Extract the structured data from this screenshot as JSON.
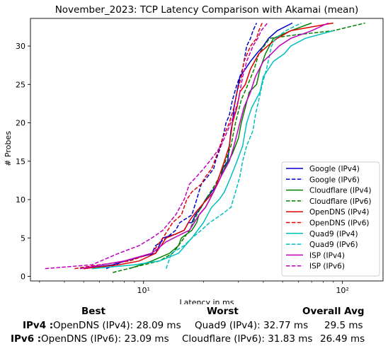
{
  "chart_data": {
    "type": "line",
    "title": "November_2023: TCP Latency Comparison with Akamai (mean)",
    "xlabel": "Latency in ms",
    "ylabel": "# Probes",
    "x_scale": "log",
    "xlim": [
      2.7,
      160
    ],
    "ylim": [
      -0.6,
      33.6
    ],
    "x_ticks": [
      {
        "value": 10,
        "label": "10¹"
      },
      {
        "value": 100,
        "label": "10²"
      }
    ],
    "y_ticks": [
      0,
      5,
      10,
      15,
      20,
      25,
      30
    ],
    "grid": false,
    "legend_position": "lower right",
    "series": [
      {
        "name": "Google (IPv4)",
        "color": "#0000cc",
        "dash": "solid",
        "points": [
          [
            5.0,
            1
          ],
          [
            7.0,
            1.5
          ],
          [
            9.5,
            2.5
          ],
          [
            11.5,
            3
          ],
          [
            12.5,
            5
          ],
          [
            14.5,
            5.5
          ],
          [
            16.0,
            6
          ],
          [
            16.8,
            7
          ],
          [
            17.5,
            7
          ],
          [
            18.2,
            8
          ],
          [
            19.5,
            9
          ],
          [
            20.5,
            10
          ],
          [
            22.0,
            11
          ],
          [
            23.5,
            12
          ],
          [
            24.5,
            13
          ],
          [
            25.0,
            14
          ],
          [
            26.5,
            15
          ],
          [
            27.0,
            17
          ],
          [
            27.5,
            19
          ],
          [
            28.0,
            20
          ],
          [
            28.5,
            22
          ],
          [
            29.5,
            24
          ],
          [
            30.5,
            26
          ],
          [
            32.5,
            27
          ],
          [
            34.5,
            28
          ],
          [
            37.0,
            29
          ],
          [
            40.0,
            30
          ],
          [
            42.5,
            31
          ],
          [
            47.0,
            32
          ],
          [
            56.0,
            33
          ]
        ]
      },
      {
        "name": "Google (IPv6)",
        "color": "#0000cc",
        "dash": "dashed",
        "points": [
          [
            6.5,
            1
          ],
          [
            8.0,
            2
          ],
          [
            11.0,
            3
          ],
          [
            11.5,
            4
          ],
          [
            13.0,
            5
          ],
          [
            14.5,
            6
          ],
          [
            15.2,
            7
          ],
          [
            17.5,
            8
          ],
          [
            18.5,
            10
          ],
          [
            19.5,
            12
          ],
          [
            21.0,
            13
          ],
          [
            22.5,
            14
          ],
          [
            23.0,
            15
          ],
          [
            24.5,
            17
          ],
          [
            26.0,
            20
          ],
          [
            27.0,
            21
          ],
          [
            28.0,
            23
          ],
          [
            29.5,
            25
          ],
          [
            31.5,
            27
          ],
          [
            33.0,
            30
          ],
          [
            34.5,
            31
          ],
          [
            35.5,
            32
          ],
          [
            37.0,
            33
          ]
        ]
      },
      {
        "name": "Cloudflare (IPv4)",
        "color": "#008000",
        "dash": "solid",
        "points": [
          [
            8.5,
            1
          ],
          [
            11.0,
            2
          ],
          [
            13.5,
            3
          ],
          [
            15.0,
            4
          ],
          [
            15.5,
            5
          ],
          [
            17.5,
            6
          ],
          [
            18.5,
            7
          ],
          [
            19.0,
            8
          ],
          [
            20.5,
            9
          ],
          [
            21.5,
            10
          ],
          [
            23.5,
            12
          ],
          [
            25.5,
            14
          ],
          [
            28.0,
            16
          ],
          [
            30.0,
            18
          ],
          [
            31.0,
            20
          ],
          [
            32.5,
            22
          ],
          [
            34.0,
            24
          ],
          [
            37.0,
            25
          ],
          [
            38.5,
            27
          ],
          [
            41.0,
            29
          ],
          [
            45.0,
            31
          ],
          [
            55.0,
            32
          ],
          [
            70.0,
            33
          ]
        ]
      },
      {
        "name": "Cloudflare (IPv6)",
        "color": "#008000",
        "dash": "dashed",
        "points": [
          [
            7.0,
            0.5
          ],
          [
            10.0,
            1.5
          ],
          [
            12.0,
            2
          ],
          [
            14.0,
            3
          ],
          [
            15.0,
            4
          ],
          [
            17.0,
            6
          ],
          [
            18.5,
            8
          ],
          [
            20.5,
            10
          ],
          [
            23.0,
            12
          ],
          [
            25.0,
            14
          ],
          [
            27.5,
            17
          ],
          [
            29.0,
            20
          ],
          [
            31.0,
            23
          ],
          [
            33.5,
            25
          ],
          [
            36.0,
            27
          ],
          [
            38.0,
            29
          ],
          [
            43.0,
            31
          ],
          [
            60.0,
            31.5
          ],
          [
            90.0,
            32
          ],
          [
            130.0,
            33
          ]
        ]
      },
      {
        "name": "OpenDNS (IPv4)",
        "color": "#e00000",
        "dash": "solid",
        "points": [
          [
            5.0,
            1
          ],
          [
            7.5,
            1.5
          ],
          [
            9.5,
            2
          ],
          [
            11.5,
            3
          ],
          [
            13.0,
            5
          ],
          [
            14.5,
            5.5
          ],
          [
            16.0,
            6
          ],
          [
            16.8,
            7
          ],
          [
            17.3,
            7.5
          ],
          [
            18.5,
            8.5
          ],
          [
            20.0,
            9.5
          ],
          [
            22.5,
            11
          ],
          [
            24.0,
            13
          ],
          [
            25.5,
            15
          ],
          [
            27.0,
            17
          ],
          [
            28.0,
            20
          ],
          [
            29.5,
            22
          ],
          [
            30.5,
            24
          ],
          [
            32.5,
            25
          ],
          [
            34.5,
            27
          ],
          [
            38.0,
            29
          ],
          [
            42.0,
            30
          ],
          [
            47.0,
            31
          ],
          [
            55.0,
            32
          ],
          [
            90.0,
            33
          ]
        ]
      },
      {
        "name": "OpenDNS (IPv6)",
        "color": "#e00000",
        "dash": "dashed",
        "points": [
          [
            4.5,
            1
          ],
          [
            6.0,
            1.5
          ],
          [
            8.5,
            2
          ],
          [
            11.0,
            3
          ],
          [
            12.5,
            5
          ],
          [
            14.0,
            7
          ],
          [
            15.5,
            8
          ],
          [
            16.5,
            10
          ],
          [
            17.5,
            11
          ],
          [
            19.5,
            12
          ],
          [
            20.5,
            13
          ],
          [
            22.0,
            14
          ],
          [
            23.5,
            16
          ],
          [
            25.0,
            18
          ],
          [
            27.0,
            20
          ],
          [
            28.5,
            22
          ],
          [
            29.5,
            24
          ],
          [
            31.0,
            26
          ],
          [
            32.0,
            28
          ],
          [
            34.5,
            30
          ],
          [
            37.0,
            31
          ],
          [
            38.0,
            32
          ],
          [
            39.5,
            33
          ]
        ]
      },
      {
        "name": "Quad9 (IPv4)",
        "color": "#00bfbf",
        "dash": "solid",
        "points": [
          [
            5.5,
            1
          ],
          [
            9.0,
            1.5
          ],
          [
            12.0,
            2
          ],
          [
            15.0,
            3
          ],
          [
            17.5,
            5
          ],
          [
            20.0,
            7
          ],
          [
            22.0,
            9
          ],
          [
            24.0,
            10
          ],
          [
            25.5,
            11
          ],
          [
            27.5,
            13
          ],
          [
            29.5,
            15
          ],
          [
            31.5,
            17
          ],
          [
            33.0,
            20
          ],
          [
            35.0,
            22
          ],
          [
            38.5,
            24
          ],
          [
            40.0,
            26
          ],
          [
            45.0,
            28
          ],
          [
            51.0,
            29
          ],
          [
            55.0,
            30
          ],
          [
            65.0,
            31
          ],
          [
            90.0,
            32
          ]
        ]
      },
      {
        "name": "Quad9 (IPv6)",
        "color": "#00bfbf",
        "dash": "dashed",
        "points": [
          [
            13.0,
            1
          ],
          [
            13.8,
            3
          ],
          [
            16.0,
            4
          ],
          [
            17.5,
            5
          ],
          [
            19.5,
            6
          ],
          [
            21.5,
            7
          ],
          [
            24.5,
            8
          ],
          [
            27.5,
            9
          ],
          [
            29.0,
            11
          ],
          [
            30.5,
            13
          ],
          [
            31.5,
            15
          ],
          [
            33.0,
            17
          ],
          [
            35.5,
            19
          ],
          [
            36.5,
            21
          ],
          [
            38.0,
            23
          ],
          [
            39.5,
            25
          ],
          [
            41.5,
            27
          ],
          [
            44.0,
            30
          ],
          [
            46.0,
            31
          ],
          [
            52.0,
            32
          ],
          [
            62.0,
            33
          ]
        ]
      },
      {
        "name": "ISP (IPv4)",
        "color": "#c000c0",
        "dash": "solid",
        "points": [
          [
            4.8,
            1
          ],
          [
            8.0,
            2
          ],
          [
            11.0,
            3
          ],
          [
            13.0,
            4.5
          ],
          [
            15.5,
            5.5
          ],
          [
            17.0,
            6
          ],
          [
            18.0,
            7
          ],
          [
            19.0,
            8
          ],
          [
            20.5,
            9
          ],
          [
            22.5,
            11
          ],
          [
            24.5,
            13
          ],
          [
            27.0,
            15
          ],
          [
            28.5,
            17
          ],
          [
            30.5,
            20
          ],
          [
            32.0,
            22
          ],
          [
            34.5,
            24
          ],
          [
            36.5,
            26
          ],
          [
            40.0,
            28
          ],
          [
            44.0,
            29
          ],
          [
            48.0,
            30
          ],
          [
            55.0,
            31
          ],
          [
            70.0,
            32
          ],
          [
            85.0,
            33
          ]
        ]
      },
      {
        "name": "ISP (IPv6)",
        "color": "#c000c0",
        "dash": "dashed",
        "points": [
          [
            3.2,
            1
          ],
          [
            5.5,
            1.5
          ],
          [
            7.5,
            3
          ],
          [
            9.5,
            4
          ],
          [
            11.0,
            5
          ],
          [
            12.5,
            6
          ],
          [
            14.5,
            8
          ],
          [
            16.0,
            10
          ],
          [
            17.0,
            12
          ],
          [
            18.5,
            13
          ],
          [
            20.0,
            14
          ],
          [
            21.5,
            15
          ],
          [
            23.0,
            16
          ],
          [
            24.5,
            17
          ],
          [
            26.5,
            19
          ],
          [
            28.5,
            21
          ],
          [
            30.0,
            23
          ],
          [
            31.5,
            26
          ],
          [
            33.0,
            28
          ],
          [
            35.5,
            30
          ],
          [
            37.5,
            31
          ],
          [
            39.0,
            32
          ],
          [
            42.0,
            33
          ]
        ]
      }
    ]
  },
  "stats": {
    "headers": {
      "best": "Best",
      "worst": "Worst",
      "avg": "Overall Avg"
    },
    "rows": [
      {
        "label": "IPv4 :",
        "best": "OpenDNS (IPv4): 28.09 ms",
        "worst": "Quad9 (IPv4): 32.77 ms",
        "avg": "29.5 ms"
      },
      {
        "label": "IPv6 :",
        "best": "OpenDNS (IPv6): 23.09 ms",
        "worst": "Cloudflare (IPv6): 31.83 ms",
        "avg": "26.49 ms"
      }
    ]
  }
}
